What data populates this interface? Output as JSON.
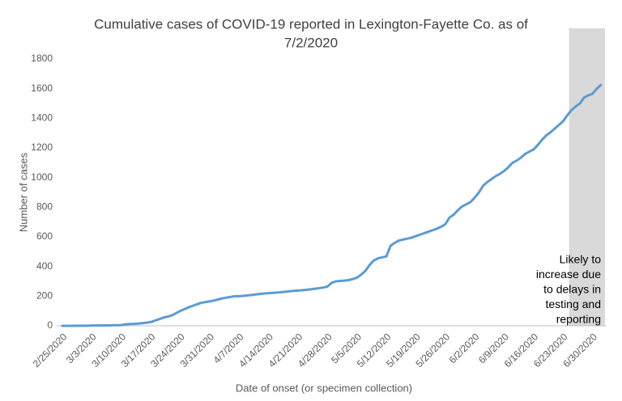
{
  "chart_data": {
    "type": "line",
    "title": [
      "Cumulative cases of COVID-19 reported in Lexington-Fayette Co.  as of",
      "7/2/2020"
    ],
    "x_label": "Date of onset (or specimen collection)",
    "y_label": "Number of cases",
    "categories": [
      "2/25/2020",
      null,
      null,
      null,
      null,
      null,
      null,
      "3/3/2020",
      null,
      null,
      null,
      null,
      null,
      null,
      "3/10/2020",
      null,
      null,
      null,
      null,
      null,
      null,
      "3/17/2020",
      null,
      null,
      null,
      null,
      null,
      null,
      "3/24/2020",
      null,
      null,
      null,
      null,
      null,
      null,
      "3/31/2020",
      null,
      null,
      null,
      null,
      null,
      null,
      "4/7/2020",
      null,
      null,
      null,
      null,
      null,
      null,
      "4/14/2020",
      null,
      null,
      null,
      null,
      null,
      null,
      "4/21/2020",
      null,
      null,
      null,
      null,
      null,
      null,
      "4/28/2020",
      null,
      null,
      null,
      null,
      null,
      null,
      "5/5/2020",
      null,
      null,
      null,
      null,
      null,
      null,
      "5/12/2020",
      null,
      null,
      null,
      null,
      null,
      null,
      "5/19/2020",
      null,
      null,
      null,
      null,
      null,
      null,
      "5/26/2020",
      null,
      null,
      null,
      null,
      null,
      null,
      "6/2/2020",
      null,
      null,
      null,
      null,
      null,
      null,
      "6/9/2020",
      null,
      null,
      null,
      null,
      null,
      null,
      "6/16/2020",
      null,
      null,
      null,
      null,
      null,
      null,
      "6/23/2020",
      null,
      null,
      null,
      null,
      null,
      null,
      "6/30/2020",
      null,
      null
    ],
    "values": [
      0,
      0,
      0,
      0,
      1,
      1,
      1,
      2,
      2,
      3,
      3,
      3,
      4,
      4,
      5,
      10,
      12,
      13,
      15,
      18,
      21,
      25,
      35,
      45,
      55,
      62,
      70,
      85,
      100,
      112,
      125,
      135,
      145,
      155,
      160,
      165,
      170,
      178,
      185,
      190,
      195,
      200,
      200,
      202,
      205,
      208,
      212,
      215,
      218,
      220,
      222,
      224,
      227,
      230,
      233,
      236,
      238,
      240,
      243,
      246,
      250,
      254,
      258,
      265,
      290,
      300,
      303,
      305,
      308,
      315,
      325,
      345,
      370,
      410,
      440,
      455,
      462,
      468,
      540,
      560,
      575,
      582,
      588,
      595,
      605,
      615,
      625,
      635,
      645,
      655,
      668,
      685,
      730,
      750,
      780,
      805,
      820,
      835,
      865,
      900,
      945,
      970,
      990,
      1010,
      1025,
      1045,
      1070,
      1100,
      1115,
      1135,
      1160,
      1175,
      1190,
      1220,
      1255,
      1285,
      1305,
      1330,
      1355,
      1380,
      1420,
      1455,
      1480,
      1500,
      1540,
      1555,
      1565,
      1600,
      1625
    ],
    "color": "#5b9bd5",
    "ylim": [
      0,
      1800
    ],
    "yticks": [
      0,
      200,
      400,
      600,
      800,
      1000,
      1200,
      1400,
      1600,
      1800
    ],
    "grid": false,
    "shaded_region": {
      "start": 121,
      "end": 128,
      "color": "#d9d9d9"
    },
    "annotation": [
      "Likely to",
      "increase due",
      "to delays in",
      "testing and",
      "reporting"
    ]
  }
}
